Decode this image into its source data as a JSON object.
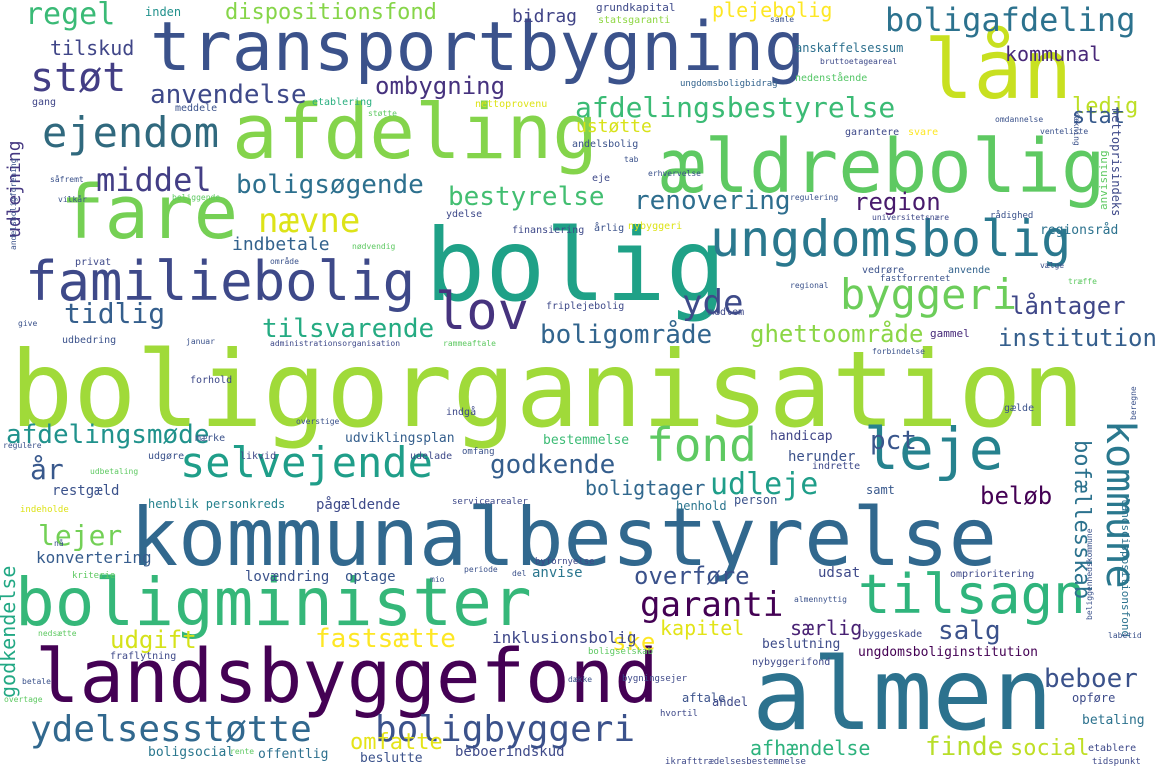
{
  "words": [
    {
      "text": "boligorganisation",
      "color": "#a0da39"
    },
    {
      "text": "kommunalbestyrelse",
      "color": "#31688e"
    },
    {
      "text": "almen",
      "color": "#2c728e"
    },
    {
      "text": "bolig",
      "color": "#1fa187"
    },
    {
      "text": "transportbygning",
      "color": "#3b528b"
    },
    {
      "text": "landsbyggefond",
      "color": "#440154"
    },
    {
      "text": "boligminister",
      "color": "#35b779"
    },
    {
      "text": "afdeling",
      "color": "#84d44b"
    },
    {
      "text": "ældrebolig",
      "color": "#5ec962"
    },
    {
      "text": "lån",
      "color": "#c8e020"
    },
    {
      "text": "fare",
      "color": "#75d054"
    },
    {
      "text": "ungdomsbolig",
      "color": "#2a788e"
    },
    {
      "text": "familiebolig",
      "color": "#3e4989"
    },
    {
      "text": "tilsagn",
      "color": "#2fb47c"
    },
    {
      "text": "selvejende",
      "color": "#1f9e89"
    },
    {
      "text": "fond",
      "color": "#5ec962"
    },
    {
      "text": "leje",
      "color": "#26828e"
    },
    {
      "text": "kommune",
      "color": "#2a788e"
    },
    {
      "text": "lov",
      "color": "#46337e"
    },
    {
      "text": "støt",
      "color": "#433e85"
    },
    {
      "text": "ejendom",
      "color": "#30697e"
    },
    {
      "text": "boligafdeling",
      "color": "#2c728e"
    },
    {
      "text": "byggeri",
      "color": "#6ccd5a"
    },
    {
      "text": "ydelsesstøtte",
      "color": "#31688e"
    },
    {
      "text": "boligbyggeri",
      "color": "#3b528b"
    },
    {
      "text": "garanti",
      "color": "#440154"
    },
    {
      "text": "middel",
      "color": "#433e85"
    },
    {
      "text": "nævne",
      "color": "#dde318"
    },
    {
      "text": "regel",
      "color": "#3aba76"
    },
    {
      "text": "afdelingsbestyrelse",
      "color": "#3bbb75"
    },
    {
      "text": "anvendelse",
      "color": "#3e4989"
    },
    {
      "text": "ombygning",
      "color": "#46327e"
    },
    {
      "text": "boligsøgende",
      "color": "#2d708e"
    },
    {
      "text": "bestyrelse",
      "color": "#42be71"
    },
    {
      "text": "renovering",
      "color": "#2e6e8e"
    },
    {
      "text": "region",
      "color": "#481a6c"
    },
    {
      "text": "yde",
      "color": "#3e4a89"
    },
    {
      "text": "tilsvarende",
      "color": "#25ab82"
    },
    {
      "text": "tidlig",
      "color": "#355f8d"
    },
    {
      "text": "boligområde",
      "color": "#32658e"
    },
    {
      "text": "ghettoområde",
      "color": "#8bd646"
    },
    {
      "text": "institution",
      "color": "#355f8d"
    },
    {
      "text": "låntager",
      "color": "#3f4788"
    },
    {
      "text": "afdelingsmøde",
      "color": "#20928c"
    },
    {
      "text": "godkende",
      "color": "#355e8d"
    },
    {
      "text": "boligtager",
      "color": "#31688e"
    },
    {
      "text": "udleje",
      "color": "#1f9e89"
    },
    {
      "text": "pct",
      "color": "#39568c"
    },
    {
      "text": "beløb",
      "color": "#440154"
    },
    {
      "text": "bofællesskab",
      "color": "#2c728e"
    },
    {
      "text": "år",
      "color": "#38588c"
    },
    {
      "text": "lejer",
      "color": "#73d056"
    },
    {
      "text": "fastsætte",
      "color": "#fde725"
    },
    {
      "text": "overføre",
      "color": "#3b528b"
    },
    {
      "text": "salg",
      "color": "#3b528b"
    },
    {
      "text": "kapitel",
      "color": "#e2e418"
    },
    {
      "text": "særlig",
      "color": "#482173"
    },
    {
      "text": "beboer",
      "color": "#3b528b"
    },
    {
      "text": "udgift",
      "color": "#d5e21a"
    },
    {
      "text": "ske",
      "color": "#fde725"
    },
    {
      "text": "omfatte",
      "color": "#e5e419"
    },
    {
      "text": "afhændelse",
      "color": "#2db27d"
    },
    {
      "text": "finde",
      "color": "#b8de29"
    },
    {
      "text": "social",
      "color": "#c0df25"
    },
    {
      "text": "godkendelse",
      "color": "#22a884"
    },
    {
      "text": "dispositionsfond",
      "color": "#86d549"
    },
    {
      "text": "plejebolig",
      "color": "#fde725"
    },
    {
      "text": "tilskud",
      "color": "#404688"
    },
    {
      "text": "bidrag",
      "color": "#414487"
    },
    {
      "text": "kommunal",
      "color": "#482878"
    },
    {
      "text": "ledig",
      "color": "#bddf26"
    },
    {
      "text": "stat",
      "color": "#375a8c"
    },
    {
      "text": "ustøtte",
      "color": "#d8e219"
    },
    {
      "text": "udlejning",
      "color": "#453781"
    },
    {
      "text": "indbetale",
      "color": "#33628d"
    },
    {
      "text": "konvertering",
      "color": "#365c8d"
    },
    {
      "text": "inklusionsbolig",
      "color": "#3f4889"
    },
    {
      "text": "lovændring",
      "color": "#3b528b"
    },
    {
      "text": "optage",
      "color": "#39568c"
    },
    {
      "text": "udsat",
      "color": "#3e4989"
    },
    {
      "text": "anvise",
      "color": "#2a768e"
    },
    {
      "text": "beboerindskud",
      "color": "#3e4a89"
    },
    {
      "text": "offentlig",
      "color": "#2d708e"
    },
    {
      "text": "beslutte",
      "color": "#3b528b"
    },
    {
      "text": "boligsocial",
      "color": "#2a778e"
    },
    {
      "text": "udviklingsplan",
      "color": "#355f8d"
    },
    {
      "text": "handicap",
      "color": "#404588"
    },
    {
      "text": "herunder",
      "color": "#3b528b"
    },
    {
      "text": "bestemmelse",
      "color": "#3cbb75"
    },
    {
      "text": "pågældende",
      "color": "#3e4a89"
    },
    {
      "text": "henblik personkreds",
      "color": "#26828e"
    },
    {
      "text": "henhold",
      "color": "#2b758e"
    },
    {
      "text": "person",
      "color": "#3b528b"
    },
    {
      "text": "samt",
      "color": "#38588c"
    },
    {
      "text": "restgæld",
      "color": "#3b528b"
    },
    {
      "text": "regionsråd",
      "color": "#2c728e"
    },
    {
      "text": "gammel",
      "color": "#472a7a"
    },
    {
      "text": "beslutning",
      "color": "#3e4c8a"
    },
    {
      "text": "ungdomsboliginstitution",
      "color": "#440154"
    },
    {
      "text": "opføre",
      "color": "#3e4c8a"
    },
    {
      "text": "betaling",
      "color": "#2c728e"
    },
    {
      "text": "aftale",
      "color": "#3b528b"
    },
    {
      "text": "andel",
      "color": "#3e4989"
    },
    {
      "text": "anskaffelsessum",
      "color": "#2d708e"
    },
    {
      "text": "grundkapital",
      "color": "#3e4989"
    },
    {
      "text": "statsgaranti",
      "color": "#8fd744"
    },
    {
      "text": "inden",
      "color": "#21918c"
    },
    {
      "text": "bruttoetageareal",
      "color": "#3e4a89"
    },
    {
      "text": "nedenstående",
      "color": "#55c667"
    },
    {
      "text": "ungdomsboligbidrag",
      "color": "#33638d"
    },
    {
      "text": "nettoprovenu",
      "color": "#dde318"
    },
    {
      "text": "etablering",
      "color": "#29af7f"
    },
    {
      "text": "meddele",
      "color": "#3b528b"
    },
    {
      "text": "gang",
      "color": "#404688"
    },
    {
      "text": "garantere",
      "color": "#3e4989"
    },
    {
      "text": "svare",
      "color": "#fde725"
    },
    {
      "text": "nettoprisindeks",
      "color": "#3e4989"
    },
    {
      "text": "anvisning",
      "color": "#5ec962"
    },
    {
      "text": "andelsbolig",
      "color": "#3b528b"
    },
    {
      "text": "eje",
      "color": "#3e4989"
    },
    {
      "text": "ydelse",
      "color": "#3e4989"
    },
    {
      "text": "årlig",
      "color": "#3b528b"
    },
    {
      "text": "nybyggeri",
      "color": "#dde318"
    },
    {
      "text": "finansiering",
      "color": "#3e4989"
    },
    {
      "text": "anvende",
      "color": "#33638d"
    },
    {
      "text": "vedrøre",
      "color": "#3b528b"
    },
    {
      "text": "friplejebolig",
      "color": "#3e4989"
    },
    {
      "text": "privat",
      "color": "#3e4989"
    },
    {
      "text": "udbedring",
      "color": "#3b528b"
    },
    {
      "text": "medlem",
      "color": "#3e4989"
    },
    {
      "text": "gælde",
      "color": "#3b528b"
    },
    {
      "text": "forhold",
      "color": "#3e4989"
    },
    {
      "text": "indgå",
      "color": "#3e4989"
    },
    {
      "text": "udelade",
      "color": "#3e4989"
    },
    {
      "text": "likvid",
      "color": "#3e4989"
    },
    {
      "text": "indrette",
      "color": "#3e4989"
    },
    {
      "text": "omprioritering",
      "color": "#3e4989"
    },
    {
      "text": "byggeskade",
      "color": "#3e4989"
    },
    {
      "text": "fraflytning",
      "color": "#3e4989"
    },
    {
      "text": "nybyggerifond",
      "color": "#3e4989"
    },
    {
      "text": "bygningsejer",
      "color": "#3e4989"
    },
    {
      "text": "hvortil",
      "color": "#3e4989"
    },
    {
      "text": "etablere",
      "color": "#3e4989"
    },
    {
      "text": "tidspunkt",
      "color": "#3e4989"
    },
    {
      "text": "ikrafttrædelsesbestemmelse",
      "color": "#3e4989"
    },
    {
      "text": "landsdispositionsfond",
      "color": "#2c728e"
    },
    {
      "text": "byfornyelse",
      "color": "#3e4989"
    },
    {
      "text": "servicearealer",
      "color": "#3e4989"
    },
    {
      "text": "administrationsorganisation",
      "color": "#3e4989"
    },
    {
      "text": "rammeaftale",
      "color": "#5ec962"
    },
    {
      "text": "universitetsnære",
      "color": "#3e4989"
    },
    {
      "text": "boligselskab",
      "color": "#5ec962"
    },
    {
      "text": "mærke",
      "color": "#3b528b"
    },
    {
      "text": "udgøre",
      "color": "#3b528b"
    },
    {
      "text": "omfang",
      "color": "#3b528b"
    },
    {
      "text": "fastforrentet",
      "color": "#3b528b"
    },
    {
      "text": "vælge",
      "color": "#3b528b"
    },
    {
      "text": "rådighed",
      "color": "#3b528b"
    },
    {
      "text": "regulering",
      "color": "#3b528b"
    },
    {
      "text": "regional",
      "color": "#3b528b"
    },
    {
      "text": "overtage",
      "color": "#5ec962"
    },
    {
      "text": "kriterie",
      "color": "#5ec962"
    },
    {
      "text": "støtte",
      "color": "#5ec962"
    },
    {
      "text": "venteliste",
      "color": "#3b528b"
    },
    {
      "text": "dækning",
      "color": "#3b528b"
    },
    {
      "text": "omdannelse",
      "color": "#3b528b"
    },
    {
      "text": "tab",
      "color": "#3b528b"
    },
    {
      "text": "samle",
      "color": "#3b528b"
    },
    {
      "text": "vilkår",
      "color": "#3b528b"
    },
    {
      "text": "beliggende",
      "color": "#5ec962"
    },
    {
      "text": "område",
      "color": "#3b528b"
    },
    {
      "text": "nødvendig",
      "color": "#5ec962"
    },
    {
      "text": "give",
      "color": "#3b528b"
    },
    {
      "text": "januar",
      "color": "#3b528b"
    },
    {
      "text": "forbindelse",
      "color": "#3b528b"
    },
    {
      "text": "regulere",
      "color": "#3b528b"
    },
    {
      "text": "betale",
      "color": "#3b528b"
    },
    {
      "text": "nedsætte",
      "color": "#5ec962"
    },
    {
      "text": "periode",
      "color": "#3b528b"
    },
    {
      "text": "del",
      "color": "#3b528b"
    },
    {
      "text": "mio",
      "color": "#3b528b"
    },
    {
      "text": "almennyttig",
      "color": "#3b528b"
    },
    {
      "text": "labetid",
      "color": "#3b528b"
    },
    {
      "text": "rente",
      "color": "#5ec962"
    },
    {
      "text": "erhvervelse",
      "color": "#3b528b"
    },
    {
      "text": "såfremt",
      "color": "#3b528b"
    },
    {
      "text": "andelsboligforening",
      "color": "#3b528b"
    },
    {
      "text": "overstige",
      "color": "#3b528b"
    },
    {
      "text": "beregne",
      "color": "#3b528b"
    },
    {
      "text": "træffe",
      "color": "#5ec962"
    },
    {
      "text": "udbetaling",
      "color": "#5ec962"
    },
    {
      "text": "beliggenhedskommune",
      "color": "#3b528b"
    },
    {
      "text": "dække",
      "color": "#3b528b"
    },
    {
      "text": "nå",
      "color": "#3b528b"
    },
    {
      "text": "indeholde",
      "color": "#dde318"
    }
  ]
}
